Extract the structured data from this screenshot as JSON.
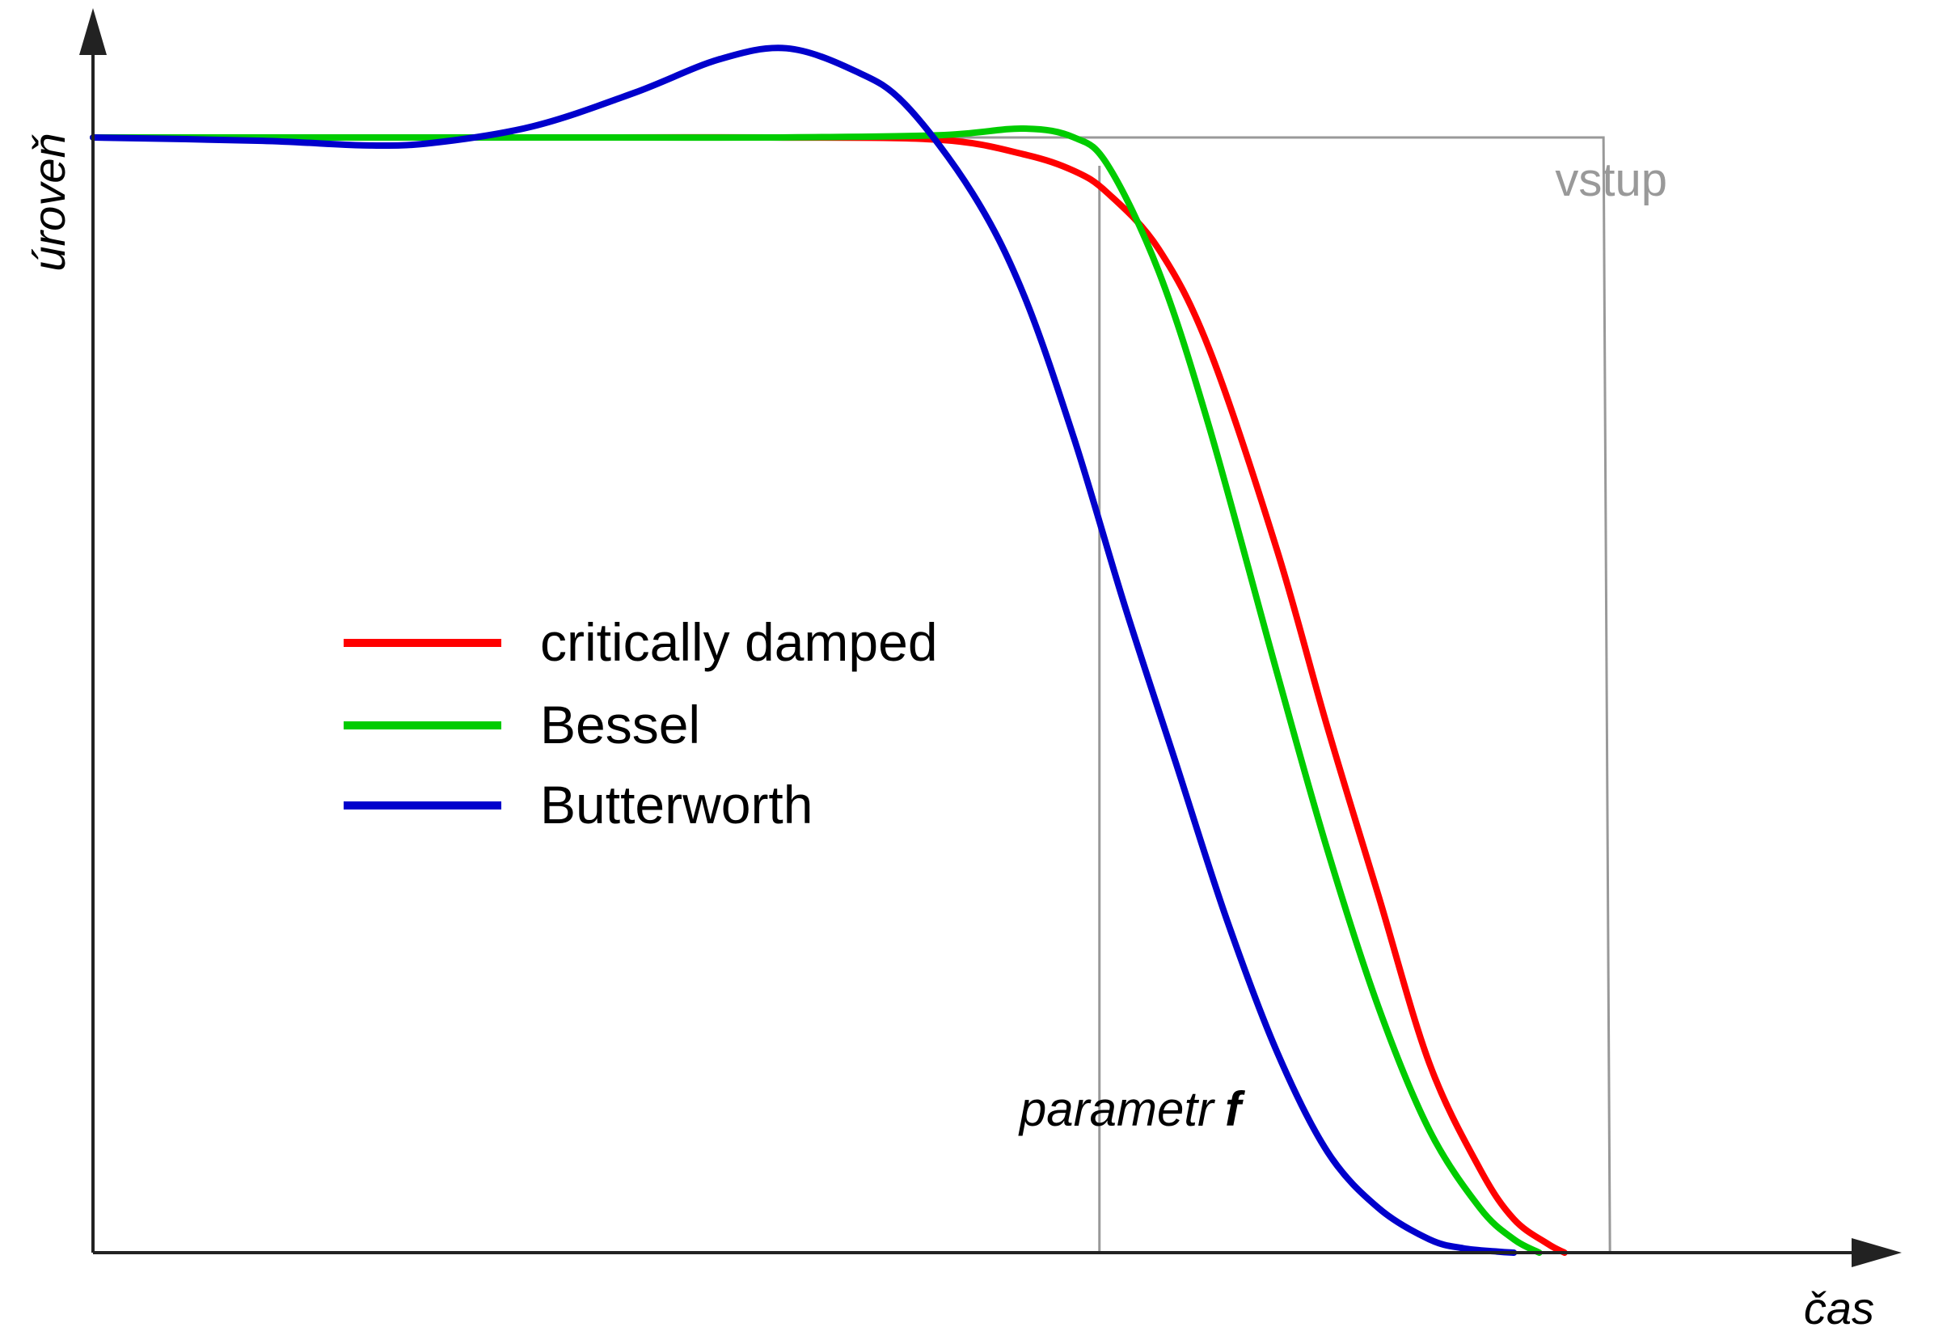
{
  "chart_data": {
    "type": "line",
    "xlabel": "čas",
    "ylabel": "úroveň",
    "xlim": [
      0,
      1
    ],
    "ylim": [
      0,
      1.08
    ],
    "grid": false,
    "legend_position": "center-left",
    "input": {
      "label": "vstup",
      "color": "#999999",
      "level": 1.0,
      "end_x": 0.893
    },
    "marker": {
      "label_prefix": "parametr",
      "label_symbol": "f",
      "x": 0.595,
      "color": "#999999"
    },
    "series": [
      {
        "name": "critically damped",
        "color": "#ff0000",
        "x": [
          0,
          0.1,
          0.2,
          0.3,
          0.4,
          0.5,
          0.55,
          0.58,
          0.6,
          0.63,
          0.66,
          0.7,
          0.73,
          0.76,
          0.79,
          0.82,
          0.84,
          0.86,
          0.87
        ],
        "y": [
          1.0,
          1.0,
          1.0,
          1.0,
          1.0,
          0.998,
          0.985,
          0.97,
          0.95,
          0.9,
          0.81,
          0.63,
          0.47,
          0.32,
          0.17,
          0.075,
          0.03,
          0.008,
          0.0
        ]
      },
      {
        "name": "Bessel",
        "color": "#00cc00",
        "x": [
          0,
          0.1,
          0.2,
          0.3,
          0.4,
          0.5,
          0.55,
          0.58,
          0.6,
          0.63,
          0.66,
          0.7,
          0.73,
          0.76,
          0.79,
          0.82,
          0.84,
          0.855
        ],
        "y": [
          1.0,
          1.0,
          1.0,
          1.0,
          1.0,
          1.002,
          1.008,
          1.0,
          0.975,
          0.88,
          0.74,
          0.52,
          0.36,
          0.22,
          0.11,
          0.04,
          0.012,
          0.0
        ]
      },
      {
        "name": "Butterworth",
        "color": "#0000cc",
        "x": [
          0,
          0.1,
          0.16,
          0.2,
          0.26,
          0.32,
          0.37,
          0.41,
          0.45,
          0.48,
          0.52,
          0.55,
          0.58,
          0.61,
          0.64,
          0.67,
          0.7,
          0.73,
          0.76,
          0.79,
          0.81,
          0.83,
          0.84
        ],
        "y": [
          1.0,
          0.997,
          0.993,
          0.995,
          1.01,
          1.04,
          1.07,
          1.08,
          1.06,
          1.03,
          0.95,
          0.86,
          0.73,
          0.58,
          0.44,
          0.3,
          0.18,
          0.09,
          0.04,
          0.012,
          0.004,
          0.001,
          0.0
        ]
      }
    ]
  }
}
